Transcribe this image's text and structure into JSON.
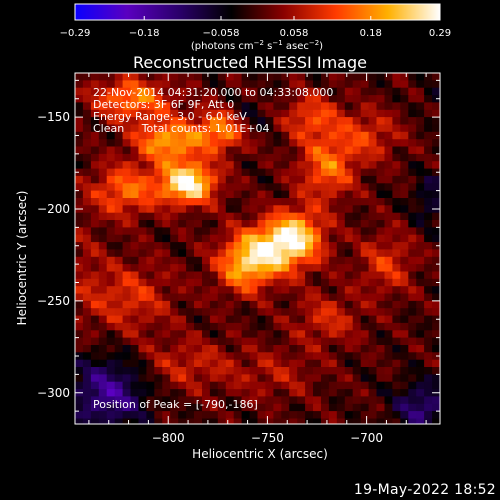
{
  "chart_data": {
    "type": "heatmap",
    "title": "Reconstructed RHESSI Image",
    "xlabel": "Heliocentric X (arcsec)",
    "ylabel": "Heliocentric Y (arcsec)",
    "xlim": [
      -847,
      -663
    ],
    "ylim": [
      -317,
      -126
    ],
    "x_ticks": [
      -800,
      -750,
      -700
    ],
    "y_ticks": [
      -150,
      -200,
      -250,
      -300
    ],
    "x_tick_labels": [
      "−800",
      "−750",
      "−700"
    ],
    "y_tick_labels": [
      "−150",
      "−200",
      "−250",
      "−300"
    ],
    "colorbar": {
      "min": -0.29,
      "max": 0.29,
      "tick_values": [
        -0.29,
        -0.18,
        -0.058,
        0.058,
        0.18,
        0.29
      ],
      "tick_labels": [
        "−0.29",
        "−0.18",
        "−0.058",
        "0.058",
        "0.18",
        "0.29"
      ],
      "units_text": "(photons cm",
      "units_exp1": "−2",
      "units_mid": " s",
      "units_exp2": "−1",
      "units_mid2": " asec",
      "units_exp3": "−2",
      "units_end": ")"
    },
    "peak": {
      "x": -790,
      "y": -186,
      "value": 0.29
    },
    "blobs": [
      {
        "x": -790,
        "y": -186,
        "value": 0.29,
        "sx": 10,
        "sy": 8
      },
      {
        "x": -800,
        "y": -163,
        "value": 0.2,
        "sx": 12,
        "sy": 8
      },
      {
        "x": -773,
        "y": -157,
        "value": 0.18,
        "sx": 9,
        "sy": 8
      },
      {
        "x": -822,
        "y": -190,
        "value": 0.15,
        "sx": 12,
        "sy": 10
      },
      {
        "x": -818,
        "y": -140,
        "value": 0.17,
        "sx": 14,
        "sy": 8
      },
      {
        "x": -748,
        "y": -222,
        "value": 0.22,
        "sx": 14,
        "sy": 10
      },
      {
        "x": -735,
        "y": -213,
        "value": 0.17,
        "sx": 10,
        "sy": 10
      },
      {
        "x": -762,
        "y": -233,
        "value": 0.15,
        "sx": 10,
        "sy": 10
      },
      {
        "x": -720,
        "y": -178,
        "value": 0.15,
        "sx": 10,
        "sy": 12
      },
      {
        "x": -728,
        "y": -150,
        "value": 0.12,
        "sx": 10,
        "sy": 9
      },
      {
        "x": -700,
        "y": -160,
        "value": 0.1,
        "sx": 12,
        "sy": 10
      },
      {
        "x": -690,
        "y": -230,
        "value": 0.1,
        "sx": 10,
        "sy": 12
      },
      {
        "x": -720,
        "y": -260,
        "value": 0.09,
        "sx": 12,
        "sy": 10
      },
      {
        "x": -820,
        "y": -248,
        "value": 0.1,
        "sx": 16,
        "sy": 14
      },
      {
        "x": -790,
        "y": -285,
        "value": 0.08,
        "sx": 18,
        "sy": 10
      },
      {
        "x": -745,
        "y": -290,
        "value": 0.06,
        "sx": 15,
        "sy": 10
      },
      {
        "x": -830,
        "y": -300,
        "value": -0.16,
        "sx": 14,
        "sy": 14
      },
      {
        "x": -672,
        "y": -308,
        "value": -0.13,
        "sx": 10,
        "sy": 10
      },
      {
        "x": -760,
        "y": -150,
        "value": -0.06,
        "sx": 8,
        "sy": 7
      },
      {
        "x": -668,
        "y": -195,
        "value": -0.08,
        "sx": 6,
        "sy": 10
      },
      {
        "x": -842,
        "y": -230,
        "value": 0.04,
        "sx": 6,
        "sy": 20
      },
      {
        "x": -665,
        "y": -140,
        "value": -0.03,
        "sx": 6,
        "sy": 8
      }
    ]
  },
  "annotations": {
    "time": "22-Nov-2014 04:31:20.000 to 04:33:08.000",
    "detectors": "Detectors: 3F 6F 9F, Att 0",
    "energy": "Energy Range: 3.0 - 6.0 keV",
    "clean": "Clean     Total counts: 1.01E+04",
    "peak_label": "Position of Peak = [-790,-186]"
  },
  "footer": {
    "date": "19-May-2022 18:52"
  },
  "colors": {
    "background": "#000000",
    "text": "#ffffff",
    "colormap": [
      "#0a00ff",
      "#5a00c0",
      "#2a006a",
      "#000000",
      "#8a0000",
      "#ff3a00",
      "#ffb000",
      "#ffffff"
    ]
  }
}
